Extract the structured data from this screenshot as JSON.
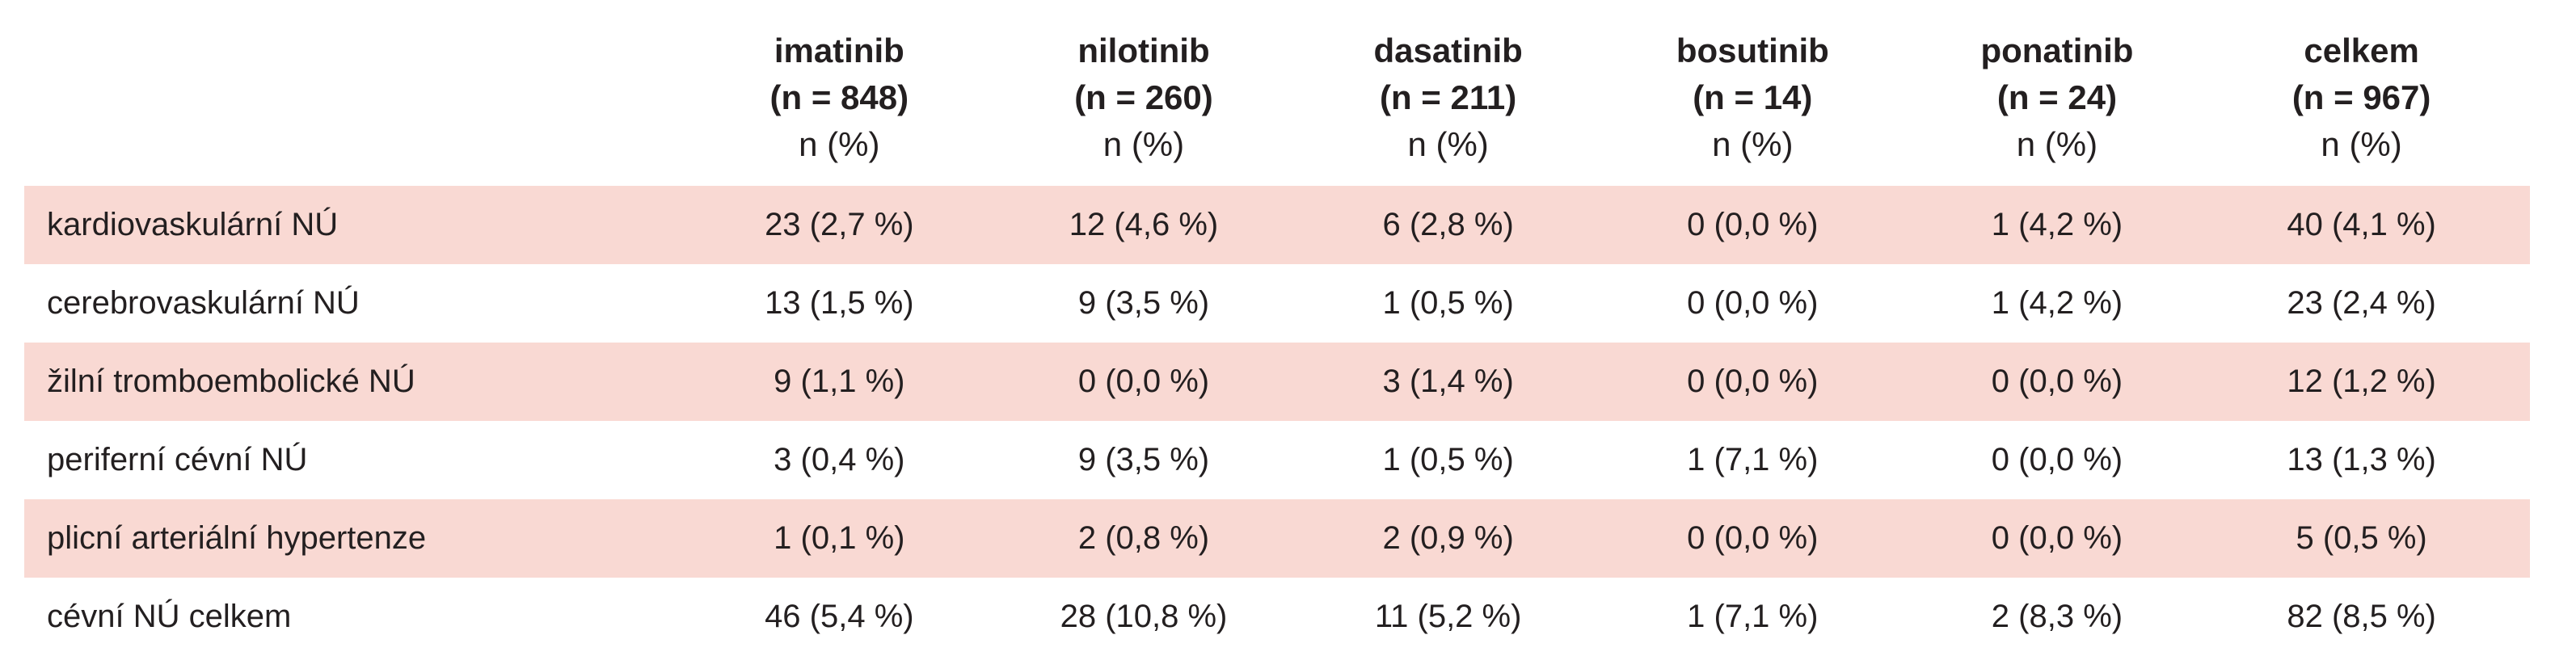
{
  "columns": [
    {
      "name": "imatinib",
      "n": "(n = 848)",
      "unit": "n (%)"
    },
    {
      "name": "nilotinib",
      "n": "(n = 260)",
      "unit": "n (%)"
    },
    {
      "name": "dasatinib",
      "n": "(n = 211)",
      "unit": "n (%)"
    },
    {
      "name": "bosutinib",
      "n": "(n = 14)",
      "unit": "n (%)"
    },
    {
      "name": "ponatinib",
      "n": "(n = 24)",
      "unit": "n (%)"
    },
    {
      "name": "celkem",
      "n": "(n = 967)",
      "unit": "n (%)"
    }
  ],
  "rows": [
    {
      "label": "kardiovaskulární NÚ",
      "values": [
        "23 (2,7 %)",
        "12 (4,6 %)",
        "6 (2,8 %)",
        "0 (0,0 %)",
        "1 (4,2 %)",
        "40 (4,1 %)"
      ]
    },
    {
      "label": "cerebrovaskulární NÚ",
      "values": [
        "13 (1,5 %)",
        "9 (3,5 %)",
        "1 (0,5 %)",
        "0 (0,0 %)",
        "1 (4,2 %)",
        "23 (2,4 %)"
      ]
    },
    {
      "label": "žilní tromboembolické NÚ",
      "values": [
        "9 (1,1 %)",
        "0 (0,0 %)",
        "3 (1,4 %)",
        "0 (0,0 %)",
        "0 (0,0 %)",
        "12 (1,2 %)"
      ]
    },
    {
      "label": "periferní cévní NÚ",
      "values": [
        "3 (0,4 %)",
        "9 (3,5 %)",
        "1 (0,5 %)",
        "1 (7,1 %)",
        "0 (0,0 %)",
        "13 (1,3 %)"
      ]
    },
    {
      "label": "plicní arteriální hypertenze",
      "values": [
        "1 (0,1 %)",
        "2 (0,8 %)",
        "2 (0,9 %)",
        "0 (0,0 %)",
        "0 (0,0 %)",
        "5 (0,5 %)"
      ]
    },
    {
      "label": "cévní NÚ celkem",
      "values": [
        "46 (5,4 %)",
        "28 (10,8 %)",
        "11 (5,2 %)",
        "1 (7,1 %)",
        "2 (8,3 %)",
        "82 (8,5 %)"
      ]
    }
  ],
  "colors": {
    "row_shade": "#f9d9d3",
    "text": "#231f20"
  }
}
